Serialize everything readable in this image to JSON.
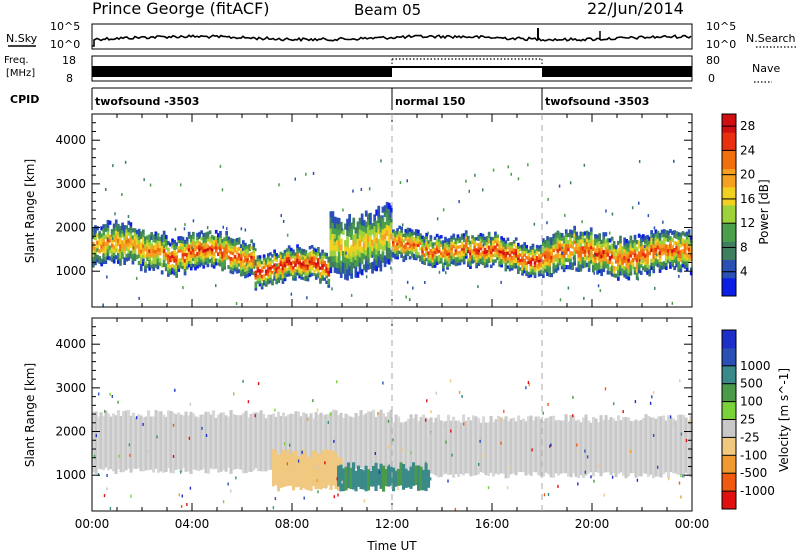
{
  "header": {
    "station": "Prince George (fitACF)",
    "beam": "Beam 05",
    "date": "22/Jun/2014"
  },
  "panels": {
    "nsky_label": "N.Sky",
    "nsearch_label": "N.Search",
    "freq_label_1": "Freq.",
    "freq_label_2": "[MHz]",
    "nave_label": "Nave",
    "cpid_label": "CPID",
    "noise_ticks_left": [
      "10^5",
      "10^0"
    ],
    "noise_ticks_right": [
      "10^5",
      "10^0"
    ],
    "freq_ticks": [
      "18",
      "8"
    ],
    "nave_ticks": [
      "80",
      "0"
    ]
  },
  "cpid": {
    "segments": [
      {
        "start_hour": 0,
        "end_hour": 12,
        "label": "twofsound -3503"
      },
      {
        "start_hour": 12,
        "end_hour": 18,
        "label": "normal 150"
      },
      {
        "start_hour": 18,
        "end_hour": 24,
        "label": "twofsound -3503"
      }
    ]
  },
  "colors": {
    "power_scale": [
      "#0a1ee6",
      "#2a4fb5",
      "#3f7f5f",
      "#4aa04a",
      "#9ed23a",
      "#f0d020",
      "#f5a020",
      "#f07010",
      "#e83010",
      "#d01010"
    ],
    "velocity_scale": [
      "#e01010",
      "#f05a10",
      "#f09a30",
      "#f0c880",
      "#c8c8c8",
      "#7ad23a",
      "#4a9a4a",
      "#3a8a8a",
      "#2a4fb5",
      "#1e2ec8"
    ],
    "ground_scatter": "#c8c8c8"
  },
  "chart_data": [
    {
      "type": "heatmap",
      "title": "Power",
      "xlabel": "",
      "ylabel": "Slant Range [km]",
      "xlim": [
        0,
        24
      ],
      "ylim": [
        180,
        4600
      ],
      "yticks": [
        1000,
        2000,
        3000,
        4000
      ],
      "colorbar": {
        "label": "Power [dB]",
        "ticks": [
          "4",
          "8",
          "12",
          "16",
          "20",
          "24",
          "28"
        ],
        "range": [
          0,
          30
        ]
      },
      "bands": [
        {
          "x_start": 0.0,
          "x_end": 3.0,
          "range_center": 1550,
          "range_width": 900,
          "value_peak": 22
        },
        {
          "x_start": 3.0,
          "x_end": 6.5,
          "range_center": 1400,
          "range_width": 800,
          "value_peak": 26
        },
        {
          "x_start": 6.5,
          "x_end": 9.5,
          "range_center": 1100,
          "range_width": 700,
          "value_peak": 28
        },
        {
          "x_start": 9.5,
          "x_end": 12.0,
          "range_center": 1700,
          "range_width": 1400,
          "value_peak": 18
        },
        {
          "x_start": 12.0,
          "x_end": 15.0,
          "range_center": 1550,
          "range_width": 700,
          "value_peak": 24
        },
        {
          "x_start": 15.0,
          "x_end": 18.0,
          "range_center": 1400,
          "range_width": 700,
          "value_peak": 27
        },
        {
          "x_start": 18.0,
          "x_end": 24.0,
          "range_center": 1400,
          "range_width": 900,
          "value_peak": 25
        }
      ]
    },
    {
      "type": "heatmap",
      "title": "Velocity",
      "xlabel": "Time UT",
      "ylabel": "Slant Range [km]",
      "xlim": [
        0,
        24
      ],
      "ylim": [
        180,
        4600
      ],
      "xticks": [
        "00:00",
        "04:00",
        "08:00",
        "12:00",
        "16:00",
        "20:00",
        "00:00"
      ],
      "yticks": [
        1000,
        2000,
        3000,
        4000
      ],
      "colorbar": {
        "label": "Velocity [m s^-1]",
        "ticks": [
          "-1000",
          "-500",
          "-100",
          "-25",
          "25",
          "100",
          "500",
          "1000"
        ]
      },
      "regions": [
        {
          "x_start": 0.0,
          "x_end": 12.0,
          "range_low": 1100,
          "range_high": 2400,
          "velocity_class": "ground"
        },
        {
          "x_start": 12.0,
          "x_end": 24.0,
          "range_low": 1000,
          "range_high": 2300,
          "velocity_class": "ground"
        },
        {
          "x_start": 7.2,
          "x_end": 10.0,
          "range_low": 700,
          "range_high": 1500,
          "velocity": -300
        },
        {
          "x_start": 9.8,
          "x_end": 13.5,
          "range_low": 700,
          "range_high": 1200,
          "velocity": 150
        }
      ]
    }
  ]
}
